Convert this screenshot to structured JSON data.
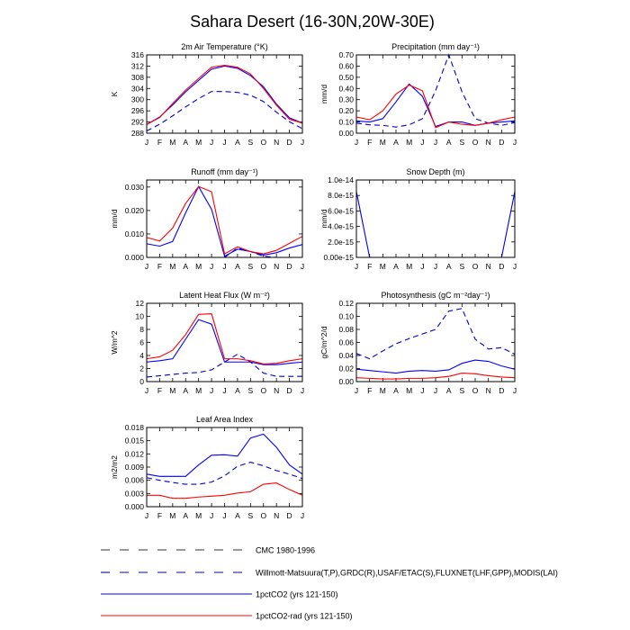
{
  "page": {
    "title": "Sahara Desert (16-30N,20W-30E)"
  },
  "colors": {
    "blue": "#0000ff",
    "red": "#ff0000",
    "dash_gray": "#303030",
    "dash_blue": "#0000cc",
    "axis": "#000000"
  },
  "legend": [
    {
      "label": "CMC 1980-1996",
      "style": "dash-gray"
    },
    {
      "label": "Willmott-Matsuura(T,P),GRDC(R),USAF/ETAC(S),FLUXNET(LHF,GPP),MODIS(LAI)",
      "style": "dash-blue"
    },
    {
      "label": "1pctCO2 (yrs 121-150)",
      "style": "solid-blue"
    },
    {
      "label": "1pctCO2-rad (yrs 121-150)",
      "style": "solid-red"
    }
  ],
  "chart_data": [
    {
      "type": "line",
      "title": "2m Air Temperature (°K)",
      "ylabel": "K",
      "categories": [
        "J",
        "F",
        "M",
        "A",
        "M",
        "J",
        "J",
        "A",
        "S",
        "O",
        "N",
        "D",
        "J"
      ],
      "ylim": [
        288,
        316
      ],
      "yticks": [
        "288",
        "292",
        "296",
        "300",
        "304",
        "308",
        "312",
        "316"
      ],
      "series": [
        {
          "style": "dash-blue",
          "values": [
            288.8,
            291.2,
            294.2,
            297.4,
            300.4,
            302.9,
            302.9,
            302.6,
            301.6,
            299.3,
            295.5,
            292.1,
            289.6
          ]
        },
        {
          "style": "solid-blue",
          "values": [
            291.1,
            293.8,
            298.1,
            302.8,
            306.9,
            310.9,
            312.0,
            311.2,
            308.6,
            304.6,
            298.4,
            293.5,
            291.6
          ]
        },
        {
          "style": "solid-red",
          "values": [
            291.1,
            293.6,
            298.6,
            303.4,
            307.6,
            311.6,
            312.3,
            311.6,
            309.2,
            304.0,
            298.0,
            293.0,
            291.6
          ]
        }
      ]
    },
    {
      "type": "line",
      "title": "Precipitation (mm day⁻¹)",
      "ylabel": "mm/d",
      "categories": [
        "J",
        "F",
        "M",
        "A",
        "M",
        "J",
        "J",
        "A",
        "S",
        "O",
        "N",
        "D",
        "J"
      ],
      "ylim": [
        0,
        0.7
      ],
      "yticks": [
        "0.00",
        "0.10",
        "0.20",
        "0.30",
        "0.40",
        "0.50",
        "0.60",
        "0.70"
      ],
      "series": [
        {
          "style": "dash-blue",
          "values": [
            0.09,
            0.075,
            0.07,
            0.055,
            0.075,
            0.13,
            0.38,
            0.7,
            0.37,
            0.13,
            0.09,
            0.07,
            0.095
          ]
        },
        {
          "style": "solid-blue",
          "values": [
            0.11,
            0.1,
            0.13,
            0.28,
            0.44,
            0.33,
            0.06,
            0.1,
            0.1,
            0.07,
            0.09,
            0.1,
            0.11
          ]
        },
        {
          "style": "solid-red",
          "values": [
            0.145,
            0.12,
            0.2,
            0.35,
            0.43,
            0.38,
            0.05,
            0.1,
            0.08,
            0.07,
            0.09,
            0.12,
            0.145
          ]
        }
      ]
    },
    {
      "type": "line",
      "title": "Runoff (mm day⁻¹)",
      "ylabel": "mm/d",
      "categories": [
        "J",
        "F",
        "M",
        "A",
        "M",
        "J",
        "J",
        "A",
        "S",
        "O",
        "N",
        "D",
        "J"
      ],
      "ylim": [
        0,
        0.033
      ],
      "yticks": [
        "0.000",
        "0.010",
        "0.020",
        "0.030"
      ],
      "ytick_values": [
        0,
        0.01,
        0.02,
        0.03
      ],
      "series": [
        {
          "style": "dash-blue",
          "values": [
            null,
            null,
            null,
            null,
            null,
            null,
            0.0,
            0.004,
            0.0025,
            0.0005,
            0.0,
            0.0,
            0.0
          ]
        },
        {
          "style": "solid-blue",
          "values": [
            0.0058,
            0.0048,
            0.0068,
            0.019,
            0.0302,
            0.0205,
            0.0005,
            0.0035,
            0.0025,
            0.001,
            0.002,
            0.004,
            0.0055
          ]
        },
        {
          "style": "solid-red",
          "values": [
            0.0085,
            0.007,
            0.0125,
            0.023,
            0.0302,
            0.028,
            0.0015,
            0.0045,
            0.0025,
            0.0015,
            0.003,
            0.006,
            0.009
          ]
        }
      ]
    },
    {
      "type": "line",
      "title": "Snow Depth (m)",
      "ylabel": "mm/d",
      "categories": [
        "J",
        "F",
        "M",
        "A",
        "M",
        "J",
        "J",
        "A",
        "S",
        "O",
        "N",
        "D",
        "J"
      ],
      "ylim": [
        0,
        1e-14
      ],
      "yticks": [
        "0.00e-15",
        "2.0e-15",
        "4.0e-15",
        "6.0e-15",
        "8.0e-15",
        "1.0e-14"
      ],
      "ytick_values": [
        0,
        2e-15,
        4e-15,
        6e-15,
        8e-15,
        1e-14
      ],
      "series": [
        {
          "style": "solid-blue",
          "values": [
            8.5e-15,
            0,
            0,
            0,
            0,
            0,
            0,
            0,
            0,
            0,
            0,
            0,
            8.5e-15
          ]
        },
        {
          "style": "solid-red",
          "values": [
            0,
            0,
            0,
            0,
            0,
            0,
            0,
            0,
            0,
            0,
            0,
            0,
            0
          ]
        }
      ]
    },
    {
      "type": "line",
      "title": "Latent Heat Flux (W m⁻²)",
      "ylabel": "W/m^2",
      "categories": [
        "J",
        "F",
        "M",
        "A",
        "M",
        "J",
        "J",
        "A",
        "S",
        "O",
        "N",
        "D",
        "J"
      ],
      "ylim": [
        0,
        12
      ],
      "yticks": [
        "0",
        "2",
        "4",
        "6",
        "8",
        "10",
        "12"
      ],
      "series": [
        {
          "style": "dash-blue",
          "values": [
            0.7,
            0.9,
            1.1,
            1.3,
            1.4,
            1.8,
            3.0,
            4.2,
            3.0,
            1.3,
            0.8,
            0.8,
            0.8
          ]
        },
        {
          "style": "solid-blue",
          "values": [
            3.0,
            3.2,
            3.5,
            6.5,
            9.5,
            8.8,
            3.0,
            3.0,
            3.0,
            2.6,
            2.6,
            2.8,
            3.0
          ]
        },
        {
          "style": "solid-red",
          "values": [
            3.5,
            3.8,
            4.8,
            7.2,
            10.3,
            10.4,
            3.5,
            3.5,
            3.2,
            2.7,
            2.8,
            3.2,
            3.5
          ]
        }
      ]
    },
    {
      "type": "line",
      "title": "Photosynthesis (gC m⁻²day⁻¹)",
      "ylabel": "gC/m^2/d",
      "categories": [
        "J",
        "F",
        "M",
        "A",
        "M",
        "J",
        "J",
        "A",
        "S",
        "O",
        "N",
        "D",
        "J"
      ],
      "ylim": [
        0,
        0.12
      ],
      "yticks": [
        "0.00",
        "0.02",
        "0.04",
        "0.06",
        "0.08",
        "0.10",
        "0.12"
      ],
      "series": [
        {
          "style": "dash-blue",
          "values": [
            0.043,
            0.035,
            0.047,
            0.058,
            0.066,
            0.073,
            0.08,
            0.108,
            0.112,
            0.065,
            0.05,
            0.052,
            0.042
          ]
        },
        {
          "style": "solid-blue",
          "values": [
            0.019,
            0.017,
            0.015,
            0.013,
            0.016,
            0.017,
            0.016,
            0.018,
            0.028,
            0.033,
            0.031,
            0.024,
            0.019
          ]
        },
        {
          "style": "solid-red",
          "values": [
            0.006,
            0.005,
            0.004,
            0.004,
            0.005,
            0.005,
            0.006,
            0.008,
            0.013,
            0.012,
            0.009,
            0.007,
            0.006
          ]
        }
      ]
    },
    {
      "type": "line",
      "title": "Leaf Area Index",
      "ylabel": "m2/m2",
      "categories": [
        "J",
        "F",
        "M",
        "A",
        "M",
        "J",
        "J",
        "A",
        "S",
        "O",
        "N",
        "D",
        "J"
      ],
      "ylim": [
        0,
        0.018
      ],
      "yticks": [
        "0.000",
        "0.003",
        "0.006",
        "0.009",
        "0.012",
        "0.015",
        "0.018"
      ],
      "series": [
        {
          "style": "dash-blue",
          "values": [
            0.0066,
            0.006,
            0.0055,
            0.0051,
            0.0051,
            0.0056,
            0.007,
            0.0092,
            0.0101,
            0.0093,
            0.0082,
            0.0074,
            0.0064
          ]
        },
        {
          "style": "solid-blue",
          "values": [
            0.0074,
            0.0069,
            0.0069,
            0.0069,
            0.0095,
            0.0117,
            0.0118,
            0.0115,
            0.0156,
            0.0165,
            0.0135,
            0.0095,
            0.0074
          ]
        },
        {
          "style": "solid-red",
          "values": [
            0.0026,
            0.0026,
            0.0019,
            0.0019,
            0.0022,
            0.0024,
            0.0026,
            0.0031,
            0.0034,
            0.0051,
            0.0054,
            0.0039,
            0.0026
          ]
        }
      ]
    }
  ]
}
